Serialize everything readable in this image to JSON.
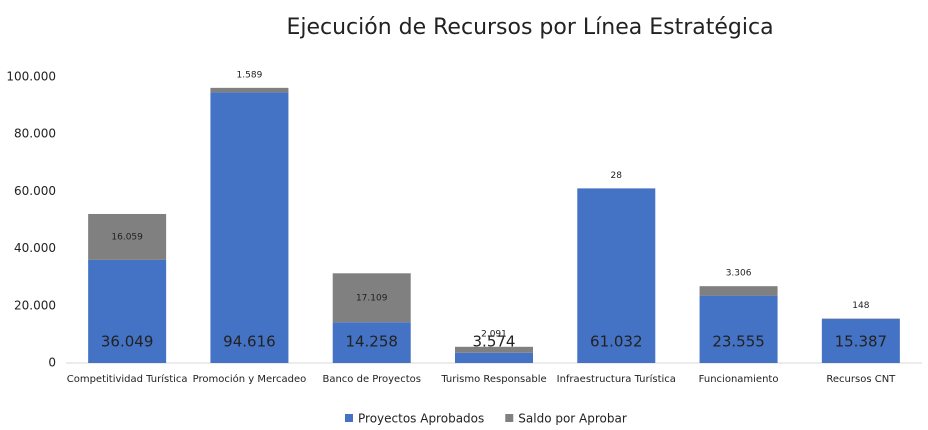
{
  "chart_data": {
    "type": "stacked_bar",
    "title": "Ejecución de Recursos por Línea Estratégica",
    "categories": [
      "Competitividad Turística",
      "Promoción y Mercadeo",
      "Banco de Proyectos",
      "Turismo Responsable",
      "Infraestructura Turística",
      "Funcionamiento",
      "Recursos CNT"
    ],
    "series": [
      {
        "name": "Proyectos Aprobados",
        "color": "#4472c4",
        "values": [
          36049,
          94616,
          14258,
          3574,
          61032,
          23555,
          15387
        ],
        "value_labels": [
          "36.049",
          "94.616",
          "14.258",
          "3.574",
          "61.032",
          "23.555",
          "15.387"
        ]
      },
      {
        "name": "Saldo por Aprobar",
        "color": "#808080",
        "values": [
          16059,
          1589,
          17109,
          2091,
          28,
          3306,
          148
        ],
        "value_labels": [
          "16.059",
          "1.589",
          "17.109",
          "2.091",
          "28",
          "3.306",
          "148"
        ]
      }
    ],
    "ylim": [
      0,
      100000
    ],
    "yticks": [
      0,
      {
        "value": 20000,
        "label": "20.000"
      },
      {
        "value": 40000,
        "label": "40.000"
      },
      {
        "value": 60000,
        "label": "60.000"
      },
      {
        "value": 80000,
        "label": "80.000"
      },
      {
        "value": 100000,
        "label": "100.000"
      }
    ],
    "grid": false,
    "legend": "bottom"
  }
}
